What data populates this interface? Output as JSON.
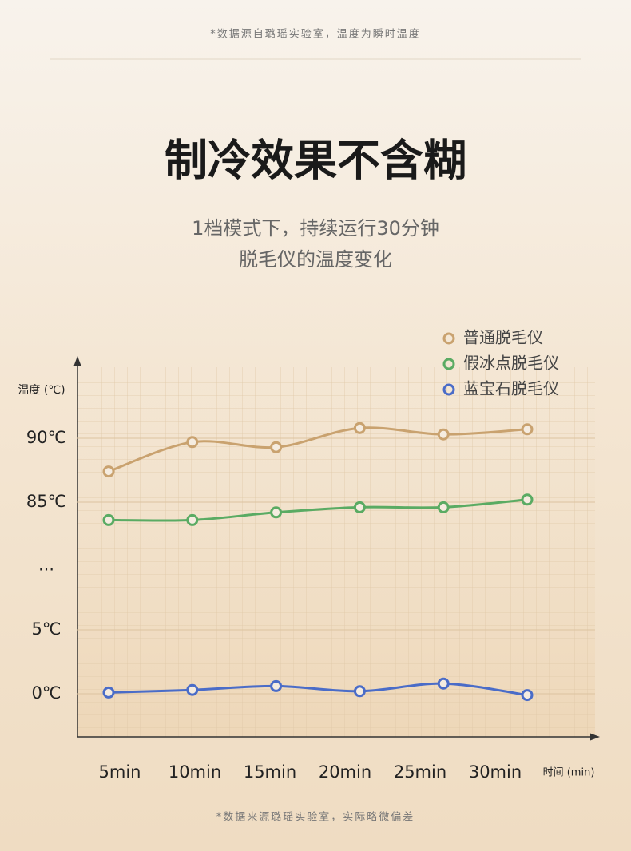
{
  "header": {
    "note": "*数据源自璐瑶实验室，温度为瞬时温度",
    "title": "制冷效果不含糊",
    "subtitle": [
      "1档模式下，持续运行30分钟",
      "脱毛仪的温度变化"
    ]
  },
  "chart_data": {
    "type": "line",
    "y_label": "温度 (℃)",
    "x_label": "时间 (min)",
    "axis_break_label": "…",
    "categories": [
      "5min",
      "10min",
      "15min",
      "20min",
      "25min",
      "30min"
    ],
    "yticks": [
      {
        "value": 90,
        "label": "90℃"
      },
      {
        "value": 85,
        "label": "85℃"
      },
      {
        "value": 5,
        "label": "5℃"
      },
      {
        "value": 0,
        "label": "0℃"
      }
    ],
    "grid": true,
    "legend": "top-right",
    "series": [
      {
        "name": "普通脱毛仪",
        "color": "#c9a26f",
        "values": [
          87.4,
          89.7,
          89.3,
          90.8,
          90.3,
          90.7
        ]
      },
      {
        "name": "假冰点脱毛仪",
        "color": "#5aab63",
        "values": [
          83.6,
          83.6,
          84.2,
          84.6,
          84.6,
          85.2
        ]
      },
      {
        "name": "蓝宝石脱毛仪",
        "color": "#4a6cc8",
        "values": [
          0.1,
          0.3,
          0.6,
          0.2,
          0.8,
          -0.1
        ]
      }
    ]
  },
  "footer_note": "*数据来源璐瑶实验室，实际略微偏差"
}
